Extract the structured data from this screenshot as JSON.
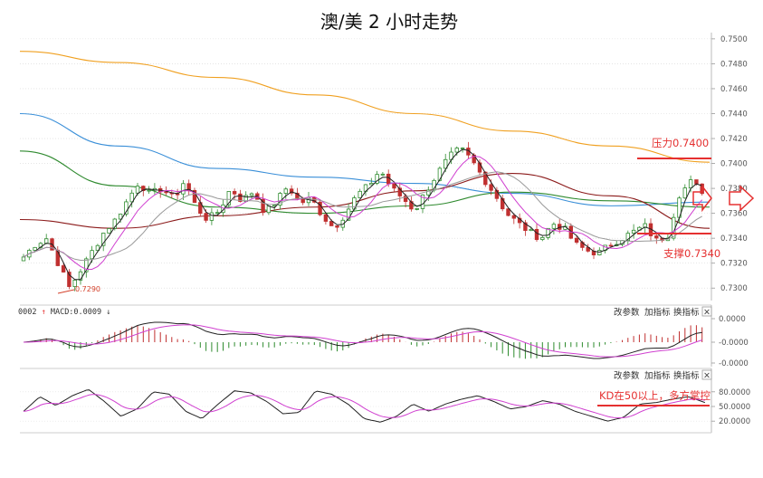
{
  "title": "澳/美 2 小时走势",
  "colors": {
    "up": "#2e8b2e",
    "down": "#c03030",
    "accent": "#e53030",
    "ma_orange": "#f0a020",
    "ma_blue": "#3a8fd8",
    "ma_green": "#2f8a2f",
    "ma_brown": "#8b1a1a",
    "ma_pink": "#d040d0",
    "ma_black": "#222222"
  },
  "macd_label": {
    "prefix": "0002 ",
    "arrow_up": "↑",
    "text": " MACD:0.0009 ",
    "arrow_down": "↓"
  },
  "panel_controls": {
    "modify": "改参数",
    "add": "加指标",
    "switch": "换指标",
    "close": "×"
  },
  "annotations": {
    "resistance": "压力0.7400",
    "support": "支撑0.7340",
    "kd": "KD在50以上，多方掌控",
    "low": "0.7290"
  },
  "chart_data": [
    {
      "type": "candlestick",
      "title": "澳/美 2 小时走势",
      "y_ticks": [
        "0.7500",
        "0.7480",
        "0.7460",
        "0.7440",
        "0.7420",
        "0.7400",
        "0.7380",
        "0.7360",
        "0.7340",
        "0.7320",
        "0.7300"
      ],
      "ylim": [
        0.729,
        0.7505
      ],
      "close_path": [
        0.7325,
        0.7335,
        0.734,
        0.732,
        0.73,
        0.7315,
        0.733,
        0.7345,
        0.7355,
        0.737,
        0.7385,
        0.7375,
        0.738,
        0.7372,
        0.7386,
        0.7365,
        0.7355,
        0.7362,
        0.738,
        0.737,
        0.7378,
        0.736,
        0.737,
        0.7382,
        0.7368,
        0.7372,
        0.7358,
        0.7348,
        0.736,
        0.7375,
        0.7382,
        0.7395,
        0.738,
        0.7372,
        0.7362,
        0.7378,
        0.7392,
        0.7405,
        0.7412,
        0.7402,
        0.7388,
        0.7375,
        0.736,
        0.7352,
        0.7345,
        0.734,
        0.7352,
        0.7348,
        0.7335,
        0.733,
        0.7328,
        0.7335,
        0.734,
        0.7345,
        0.735,
        0.7338,
        0.7342,
        0.7375,
        0.7385,
        0.7378
      ],
      "moving_averages": [
        {
          "color_key": "ma_orange",
          "values": [
            0.749,
            0.7481,
            0.7469,
            0.7455,
            0.744,
            0.7426,
            0.7414,
            0.7401
          ]
        },
        {
          "color_key": "ma_blue",
          "values": [
            0.744,
            0.7414,
            0.7396,
            0.7389,
            0.7384,
            0.7376,
            0.7366,
            0.7369
          ]
        },
        {
          "color_key": "ma_green",
          "values": [
            0.741,
            0.7382,
            0.7365,
            0.736,
            0.7366,
            0.7377,
            0.737,
            0.7365
          ]
        },
        {
          "color_key": "ma_brown",
          "values": [
            0.7355,
            0.7348,
            0.7358,
            0.7365,
            0.7378,
            0.7392,
            0.7374,
            0.7348
          ]
        }
      ],
      "low_marker": 0.729,
      "resistance": 0.74,
      "support": 0.734
    },
    {
      "type": "line",
      "name": "MACD",
      "y_ticks": [
        "0.0000",
        "-0.0000",
        "-0.0000"
      ]
    },
    {
      "type": "line",
      "name": "KD",
      "y_ticks": [
        "80.0000",
        "50.0000",
        "20.0000"
      ],
      "ylim": [
        0,
        100
      ],
      "k_path": [
        40,
        70,
        52,
        72,
        85,
        60,
        30,
        45,
        80,
        75,
        40,
        25,
        55,
        82,
        78,
        60,
        35,
        38,
        82,
        75,
        55,
        25,
        18,
        30,
        55,
        40,
        55,
        65,
        72,
        60,
        45,
        50,
        62,
        55,
        40,
        30,
        20,
        28,
        55,
        58,
        65,
        70,
        58
      ],
      "level": 50
    }
  ]
}
